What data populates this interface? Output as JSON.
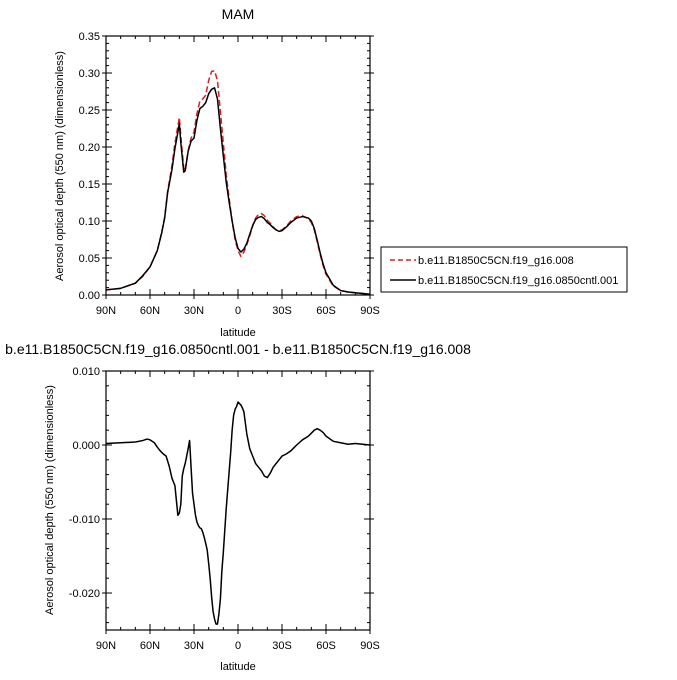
{
  "chart_data": [
    {
      "type": "line",
      "title": "MAM",
      "xlabel": "latitude",
      "ylabel": "Aerosol optical depth (550 nm) (dimensionless)",
      "xlim": [
        90,
        -90
      ],
      "ylim": [
        0,
        0.35
      ],
      "x_ticks": [
        {
          "value": 90,
          "label": "90N"
        },
        {
          "value": 60,
          "label": "60N"
        },
        {
          "value": 30,
          "label": "30N"
        },
        {
          "value": 0,
          "label": "0"
        },
        {
          "value": -30,
          "label": "30S"
        },
        {
          "value": -60,
          "label": "60S"
        },
        {
          "value": -90,
          "label": "90S"
        }
      ],
      "y_ticks": [
        {
          "value": 0,
          "label": "0.00"
        },
        {
          "value": 0.05,
          "label": "0.05"
        },
        {
          "value": 0.1,
          "label": "0.10"
        },
        {
          "value": 0.15,
          "label": "0.15"
        },
        {
          "value": 0.2,
          "label": "0.20"
        },
        {
          "value": 0.25,
          "label": "0.25"
        },
        {
          "value": 0.3,
          "label": "0.30"
        },
        {
          "value": 0.35,
          "label": "0.35"
        }
      ],
      "grid": false,
      "legend_position": "right",
      "series": [
        {
          "name": "b.e11.B1850C5CN.f19_g16.008",
          "color": "#dd1f1f",
          "dash": "dashed",
          "x": [
            90,
            80,
            70,
            65,
            60,
            55,
            52,
            50,
            48,
            45,
            43,
            41,
            40,
            39,
            37,
            36,
            34,
            32,
            30,
            28,
            26,
            24,
            22,
            20,
            18,
            16,
            14,
            12,
            10,
            8,
            6,
            4,
            2,
            0,
            -2,
            -4,
            -6,
            -8,
            -10,
            -12,
            -14,
            -16,
            -18,
            -20,
            -22,
            -24,
            -26,
            -28,
            -30,
            -33,
            -36,
            -40,
            -44,
            -48,
            -50,
            -52,
            -54,
            -56,
            -58,
            -60,
            -65,
            -70,
            -75,
            -80,
            -85,
            -90
          ],
          "y": [
            0.007,
            0.009,
            0.016,
            0.025,
            0.038,
            0.06,
            0.085,
            0.105,
            0.14,
            0.175,
            0.205,
            0.228,
            0.24,
            0.215,
            0.172,
            0.168,
            0.195,
            0.212,
            0.22,
            0.245,
            0.262,
            0.265,
            0.27,
            0.29,
            0.302,
            0.303,
            0.29,
            0.248,
            0.205,
            0.162,
            0.13,
            0.1,
            0.075,
            0.06,
            0.052,
            0.058,
            0.068,
            0.08,
            0.093,
            0.104,
            0.109,
            0.11,
            0.107,
            0.101,
            0.097,
            0.092,
            0.088,
            0.087,
            0.088,
            0.093,
            0.1,
            0.106,
            0.107,
            0.103,
            0.098,
            0.088,
            0.072,
            0.055,
            0.04,
            0.028,
            0.012,
            0.006,
            0.004,
            0.003,
            0.002,
            0.001
          ]
        },
        {
          "name": "b.e11.B1850C5CN.f19_g16.0850cntl.001",
          "color": "#000000",
          "dash": "solid",
          "x": [
            90,
            80,
            70,
            65,
            60,
            55,
            52,
            50,
            48,
            45,
            43,
            41,
            40,
            39,
            37,
            36,
            34,
            32,
            30,
            28,
            26,
            24,
            22,
            20,
            18,
            16,
            14,
            12,
            10,
            8,
            6,
            4,
            2,
            0,
            -2,
            -4,
            -6,
            -8,
            -10,
            -12,
            -14,
            -16,
            -18,
            -20,
            -22,
            -24,
            -26,
            -28,
            -30,
            -33,
            -36,
            -40,
            -44,
            -48,
            -50,
            -52,
            -54,
            -56,
            -58,
            -60,
            -65,
            -70,
            -75,
            -80,
            -85,
            -90
          ],
          "y": [
            0.007,
            0.009,
            0.016,
            0.026,
            0.038,
            0.06,
            0.084,
            0.104,
            0.138,
            0.17,
            0.198,
            0.22,
            0.232,
            0.206,
            0.166,
            0.168,
            0.194,
            0.208,
            0.212,
            0.236,
            0.252,
            0.255,
            0.26,
            0.272,
            0.278,
            0.28,
            0.265,
            0.225,
            0.188,
            0.152,
            0.125,
            0.1,
            0.078,
            0.063,
            0.058,
            0.062,
            0.07,
            0.082,
            0.094,
            0.102,
            0.105,
            0.106,
            0.103,
            0.098,
            0.095,
            0.091,
            0.088,
            0.086,
            0.087,
            0.092,
            0.098,
            0.104,
            0.106,
            0.104,
            0.1,
            0.09,
            0.074,
            0.057,
            0.042,
            0.03,
            0.013,
            0.006,
            0.004,
            0.003,
            0.002,
            0.001
          ]
        }
      ]
    },
    {
      "type": "line",
      "title": "b.e11.B1850C5CN.f19_g16.0850cntl.001 - b.e11.B1850C5CN.f19_g16.008",
      "xlabel": "latitude",
      "ylabel": "Aerosol optical depth (550 nm) (dimensionless)",
      "xlim": [
        90,
        -90
      ],
      "ylim": [
        -0.025,
        0.01
      ],
      "x_ticks": [
        {
          "value": 90,
          "label": "90N"
        },
        {
          "value": 60,
          "label": "60N"
        },
        {
          "value": 30,
          "label": "30N"
        },
        {
          "value": 0,
          "label": "0"
        },
        {
          "value": -30,
          "label": "30S"
        },
        {
          "value": -60,
          "label": "60S"
        },
        {
          "value": -90,
          "label": "90S"
        }
      ],
      "y_ticks": [
        {
          "value": 0.01,
          "label": "0.010"
        },
        {
          "value": 0,
          "label": "0.000"
        },
        {
          "value": -0.01,
          "label": "-0.010"
        },
        {
          "value": -0.02,
          "label": "-0.020"
        }
      ],
      "grid": false,
      "series": [
        {
          "color": "#000000",
          "dash": "solid",
          "x": [
            90,
            80,
            70,
            65,
            62,
            60,
            57,
            55,
            53,
            51,
            49,
            47,
            45,
            43,
            42,
            41,
            40,
            39,
            38,
            37,
            36,
            35,
            34,
            33,
            32,
            31,
            30,
            29,
            28,
            27,
            26,
            25,
            24,
            23,
            22,
            21,
            20,
            19,
            18,
            17,
            16,
            15,
            14,
            13,
            12,
            11,
            10,
            9,
            8,
            7,
            6,
            5,
            4,
            3,
            2,
            1,
            0,
            -1,
            -2,
            -3,
            -4,
            -5,
            -6,
            -7,
            -8,
            -10,
            -12,
            -14,
            -16,
            -18,
            -20,
            -22,
            -24,
            -26,
            -28,
            -30,
            -33,
            -36,
            -40,
            -44,
            -48,
            -50,
            -52,
            -54,
            -56,
            -58,
            -60,
            -65,
            -70,
            -75,
            -80,
            -85,
            -90
          ],
          "y": [
            0.0002,
            0.0003,
            0.0004,
            0.0006,
            0.0008,
            0.0007,
            0.0003,
            -0.0003,
            -0.0008,
            -0.0012,
            -0.0015,
            -0.0028,
            -0.0045,
            -0.0055,
            -0.0075,
            -0.0095,
            -0.0092,
            -0.008,
            -0.0042,
            -0.0032,
            -0.0025,
            -0.0015,
            -0.0005,
            0.0006,
            -0.003,
            -0.0065,
            -0.008,
            -0.0095,
            -0.0104,
            -0.0109,
            -0.0112,
            -0.0113,
            -0.0118,
            -0.0125,
            -0.0133,
            -0.0142,
            -0.016,
            -0.018,
            -0.0205,
            -0.0225,
            -0.0235,
            -0.0242,
            -0.0242,
            -0.0228,
            -0.0208,
            -0.017,
            -0.0145,
            -0.0115,
            -0.0085,
            -0.006,
            -0.0035,
            -0.001,
            0.002,
            0.004,
            0.0048,
            0.0052,
            0.0058,
            0.0056,
            0.0054,
            0.005,
            0.0045,
            0.003,
            0.0015,
            0.0005,
            -0.0005,
            -0.0015,
            -0.0025,
            -0.003,
            -0.0035,
            -0.0042,
            -0.0044,
            -0.0038,
            -0.003,
            -0.0025,
            -0.002,
            -0.0015,
            -0.0012,
            -0.0008,
            0,
            0.0007,
            0.0012,
            0.0016,
            0.002,
            0.0022,
            0.002,
            0.0017,
            0.0012,
            0.0005,
            0.0003,
            0.0001,
            0.0002,
            0.0001,
            0
          ]
        }
      ]
    }
  ]
}
